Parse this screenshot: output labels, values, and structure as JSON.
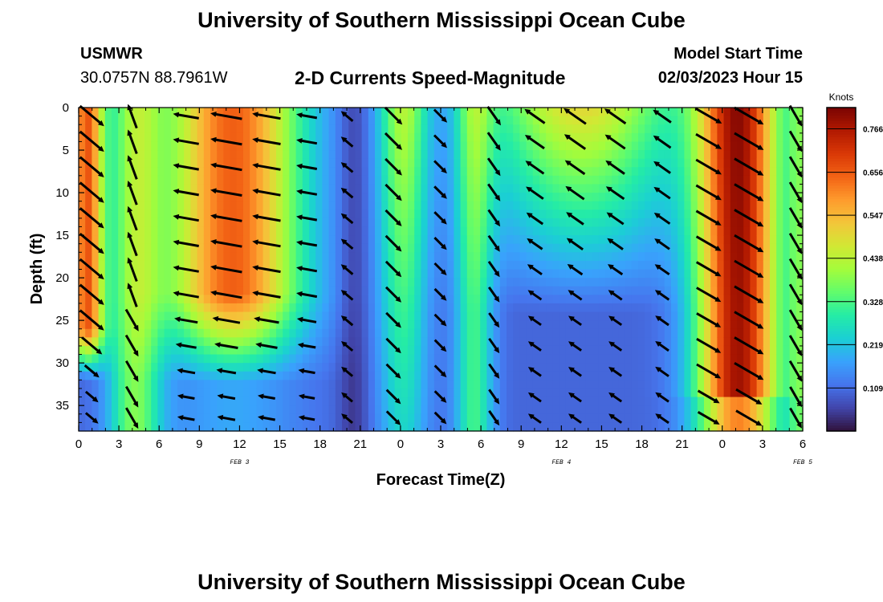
{
  "header": {
    "title": "University of Southern Mississippi Ocean Cube",
    "station": "USMWR",
    "coordinates": "30.0757N  88.7961W",
    "subtitle": "2-D Currents Speed-Magnitude",
    "model_start_label": "Model Start Time",
    "model_start_value": "02/03/2023 Hour 15",
    "repeat_title": "University of Southern Mississippi Ocean Cube"
  },
  "colors": {
    "ramp": [
      "#30123b",
      "#4145ab",
      "#4675ed",
      "#39a2fc",
      "#1bcfd4",
      "#24eca6",
      "#61fc6c",
      "#a4fc3b",
      "#d1e834",
      "#f3c63a",
      "#fe9b2d",
      "#f36315",
      "#d93806",
      "#b11901",
      "#7a0402"
    ],
    "arrow": "#000000"
  },
  "chart_data": {
    "type": "heatmap",
    "title": "2-D Currents Speed-Magnitude",
    "xlabel": "Forecast Time(Z)",
    "ylabel": "Depth (ft)",
    "x_tick_labels": [
      "0",
      "3",
      "6",
      "9",
      "12",
      "15",
      "18",
      "21",
      "0",
      "3",
      "6",
      "9",
      "12",
      "15",
      "18",
      "21",
      "0",
      "3",
      "6"
    ],
    "date_labels": [
      {
        "text": "FEB 3",
        "hour": 12
      },
      {
        "text": "FEB 4",
        "hour": 36
      },
      {
        "text": "FEB 5",
        "hour": 54
      }
    ],
    "xlim": [
      0,
      54
    ],
    "y_ticks": [
      0,
      5,
      10,
      15,
      20,
      25,
      30,
      35
    ],
    "ylim": [
      0,
      38
    ],
    "colorbar": {
      "unit": "Knots",
      "range": [
        0,
        0.82
      ],
      "tick_labels": [
        "0.766",
        "0.656",
        "0.547",
        "0.438",
        "0.328",
        "0.219",
        "0.109"
      ]
    },
    "approx_bands": [
      {
        "hour_start": 0,
        "hour_end": 1.5,
        "speed_knots": 0.6
      },
      {
        "hour_start": 2,
        "hour_end": 6,
        "speed_knots": 0.3
      },
      {
        "hour_start": 7.5,
        "hour_end": 18,
        "speed_knots": 0.62
      },
      {
        "hour_start": 19,
        "hour_end": 22,
        "speed_knots": 0.12
      },
      {
        "hour_start": 23,
        "hour_end": 26,
        "speed_knots": 0.38
      },
      {
        "hour_start": 27,
        "hour_end": 30.5,
        "speed_knots": 0.22
      },
      {
        "hour_start": 31.5,
        "hour_end": 42,
        "speed_knots": 0.45
      },
      {
        "hour_start": 45.5,
        "hour_end": 52,
        "speed_knots": 0.72
      }
    ]
  }
}
